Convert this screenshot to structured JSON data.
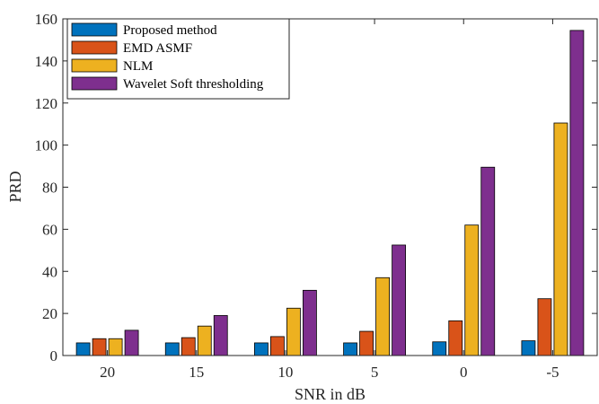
{
  "chart_data": {
    "type": "bar",
    "xlabel": "SNR in dB",
    "ylabel": "PRD",
    "categories": [
      "20",
      "15",
      "10",
      "5",
      "0",
      "-5"
    ],
    "ylim": [
      0,
      160
    ],
    "yticks": [
      0,
      20,
      40,
      60,
      80,
      100,
      120,
      140,
      160
    ],
    "grid": false,
    "legend_position": "top-left",
    "series": [
      {
        "name": "Proposed method",
        "color": "#0072BD",
        "values": [
          6,
          6,
          6,
          6,
          6.5,
          7
        ]
      },
      {
        "name": "EMD ASMF",
        "color": "#D95319",
        "values": [
          8,
          8.5,
          9,
          11.5,
          16.5,
          27
        ]
      },
      {
        "name": "NLM",
        "color": "#EDB120",
        "values": [
          8,
          14,
          22.5,
          37,
          62,
          110.5
        ]
      },
      {
        "name": "Wavelet Soft thresholding",
        "color": "#7E2F8E",
        "values": [
          12,
          19,
          31,
          52.5,
          89.5,
          154.5
        ]
      }
    ]
  }
}
